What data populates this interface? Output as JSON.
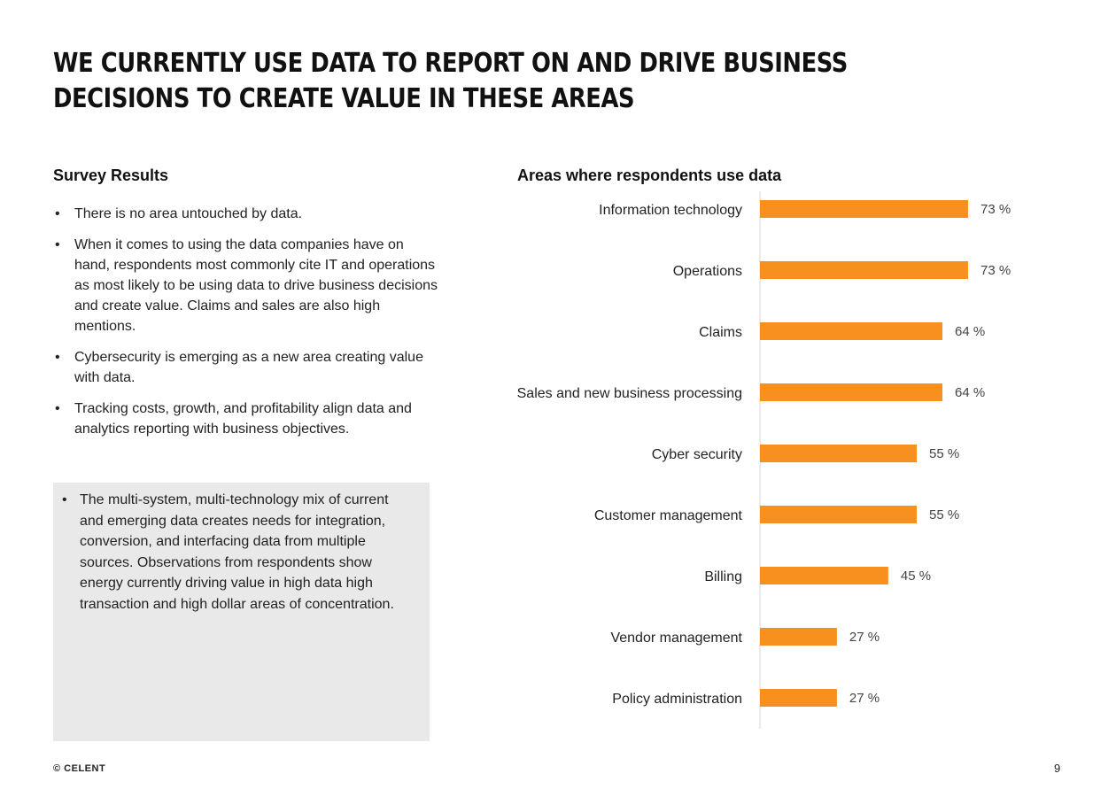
{
  "title": "WE CURRENTLY USE DATA TO REPORT ON AND DRIVE BUSINESS DECISIONS TO CREATE VALUE IN THESE AREAS",
  "survey": {
    "heading": "Survey Results",
    "bullets": [
      "There is no area untouched by data.",
      "When it comes to using the data companies have on hand, respondents most commonly cite IT and operations as most likely to be using data to drive business decisions and create value. Claims and sales are also high mentions.",
      "Cybersecurity is emerging as a new area creating value with data.",
      "Tracking costs, growth, and profitability align data and analytics reporting with business objectives."
    ],
    "note": "The multi-system, multi-technology mix of current and emerging data creates needs for integration, conversion, and interfacing data from multiple sources.  Observations from respondents show energy currently driving value in high data high transaction and high dollar areas of concentration."
  },
  "chart_data": {
    "type": "bar",
    "orientation": "horizontal",
    "title": "Areas where respondents use data",
    "categories": [
      "Information technology",
      "Operations",
      "Claims",
      "Sales and new business processing",
      "Cyber security",
      "Customer management",
      "Billing",
      "Vendor management",
      "Policy administration"
    ],
    "values": [
      73,
      73,
      64,
      64,
      55,
      55,
      45,
      27,
      27
    ],
    "value_suffix": " %",
    "xlim": [
      0,
      100
    ],
    "bar_color": "#f7901e",
    "grid": false
  },
  "footer": {
    "copyright": "© CELENT",
    "page_number": "9"
  }
}
